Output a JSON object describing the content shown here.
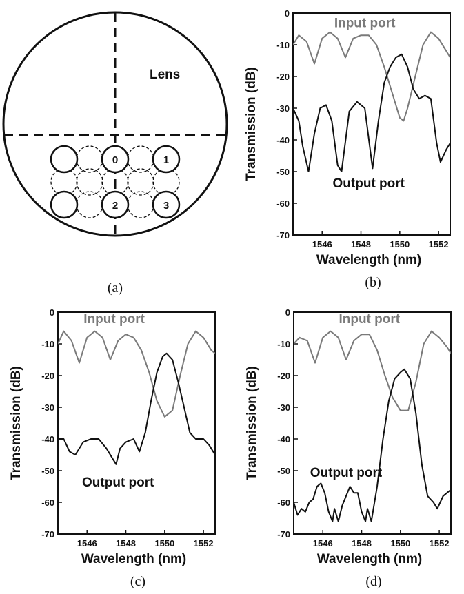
{
  "schematic": {
    "caption": "(a)",
    "lens_label": "Lens",
    "fiber_labels": [
      "0",
      "1",
      "2",
      "3"
    ]
  },
  "colors": {
    "input_line": "#7a7a7a",
    "output_line": "#111111",
    "axis": "#111111"
  },
  "chart_data": [
    {
      "type": "line",
      "caption": "(b)",
      "xlabel": "Wavelength (nm)",
      "ylabel": "Transmission (dB)",
      "xlim": [
        1544.5,
        1552.6
      ],
      "ylim": [
        -70,
        0
      ],
      "xticks": [
        1546,
        1548,
        1550,
        1552
      ],
      "yticks": [
        0,
        -10,
        -20,
        -30,
        -40,
        -50,
        -60,
        -70
      ],
      "annotations": [
        {
          "text": "Input port",
          "x": 1548.2,
          "y": -4.5,
          "series": "input"
        },
        {
          "text": "Output port",
          "x": 1548.4,
          "y": -55,
          "series": "output"
        }
      ],
      "series": [
        {
          "key": "input",
          "name": "Input port",
          "x": [
            1544.5,
            1544.8,
            1545.2,
            1545.6,
            1546.0,
            1546.4,
            1546.8,
            1547.2,
            1547.6,
            1548.0,
            1548.4,
            1548.8,
            1549.2,
            1549.6,
            1550.0,
            1550.2,
            1550.4,
            1550.8,
            1551.2,
            1551.6,
            1552.0,
            1552.4,
            1552.6
          ],
          "values": [
            -10,
            -7,
            -9,
            -16,
            -8,
            -6,
            -8,
            -14,
            -8,
            -7,
            -7,
            -10,
            -17,
            -25,
            -33,
            -34,
            -30,
            -20,
            -10,
            -6,
            -8,
            -12,
            -14
          ]
        },
        {
          "key": "output",
          "name": "Output port",
          "x": [
            1544.5,
            1544.8,
            1545.0,
            1545.3,
            1545.6,
            1545.9,
            1546.2,
            1546.5,
            1546.8,
            1547.0,
            1547.4,
            1547.8,
            1548.2,
            1548.6,
            1548.9,
            1549.2,
            1549.5,
            1549.8,
            1550.1,
            1550.4,
            1550.7,
            1551.0,
            1551.3,
            1551.6,
            1551.9,
            1552.1,
            1552.4,
            1552.6
          ],
          "values": [
            -30,
            -34,
            -42,
            -50,
            -38,
            -30,
            -29,
            -34,
            -48,
            -50,
            -31,
            -28,
            -30,
            -49,
            -34,
            -22,
            -17,
            -14,
            -13,
            -17,
            -24,
            -27,
            -26,
            -27,
            -41,
            -47,
            -43,
            -41
          ]
        }
      ]
    },
    {
      "type": "line",
      "caption": "(c)",
      "xlabel": "Wavelength (nm)",
      "ylabel": "Transmission (dB)",
      "xlim": [
        1544.5,
        1552.6
      ],
      "ylim": [
        -70,
        0
      ],
      "xticks": [
        1546,
        1548,
        1550,
        1552
      ],
      "yticks": [
        0,
        -10,
        -20,
        -30,
        -40,
        -50,
        -60,
        -70
      ],
      "annotations": [
        {
          "text": "Input port",
          "x": 1547.4,
          "y": -3.5,
          "series": "input"
        },
        {
          "text": "Output port",
          "x": 1547.6,
          "y": -55,
          "series": "output"
        }
      ],
      "series": [
        {
          "key": "input",
          "name": "Input port",
          "x": [
            1544.5,
            1544.8,
            1545.2,
            1545.6,
            1546.0,
            1546.4,
            1546.8,
            1547.2,
            1547.6,
            1548.0,
            1548.4,
            1548.8,
            1549.2,
            1549.6,
            1550.0,
            1550.4,
            1550.8,
            1551.2,
            1551.6,
            1552.0,
            1552.4,
            1552.6
          ],
          "values": [
            -10,
            -6,
            -9,
            -16,
            -8,
            -6,
            -8,
            -15,
            -9,
            -7,
            -8,
            -12,
            -19,
            -28,
            -33,
            -31,
            -20,
            -10,
            -6,
            -8,
            -12,
            -13
          ]
        },
        {
          "key": "output",
          "name": "Output port",
          "x": [
            1544.5,
            1544.8,
            1545.1,
            1545.4,
            1545.8,
            1546.2,
            1546.6,
            1547.0,
            1547.3,
            1547.5,
            1547.7,
            1548.0,
            1548.4,
            1548.7,
            1549.0,
            1549.3,
            1549.6,
            1549.9,
            1550.1,
            1550.4,
            1550.7,
            1551.0,
            1551.3,
            1551.6,
            1552.0,
            1552.3,
            1552.6
          ],
          "values": [
            -40,
            -40,
            -44,
            -45,
            -41,
            -40,
            -40,
            -43,
            -46,
            -48,
            -43,
            -41,
            -40,
            -44,
            -38,
            -28,
            -19,
            -14,
            -13,
            -15,
            -22,
            -30,
            -38,
            -40,
            -40,
            -42,
            -45
          ]
        }
      ]
    },
    {
      "type": "line",
      "caption": "(d)",
      "xlabel": "Wavelength (nm)",
      "ylabel": "Transmission (dB)",
      "xlim": [
        1544.5,
        1552.6
      ],
      "ylim": [
        -70,
        0
      ],
      "xticks": [
        1546,
        1548,
        1550,
        1552
      ],
      "yticks": [
        0,
        -10,
        -20,
        -30,
        -40,
        -50,
        -60,
        -70
      ],
      "annotations": [
        {
          "text": "Input port",
          "x": 1548.4,
          "y": -3.5,
          "series": "input"
        },
        {
          "text": "Output port",
          "x": 1547.2,
          "y": -52,
          "series": "output"
        }
      ],
      "series": [
        {
          "key": "input",
          "name": "Input port",
          "x": [
            1544.5,
            1544.8,
            1545.2,
            1545.6,
            1546.0,
            1546.4,
            1546.8,
            1547.2,
            1547.6,
            1548.0,
            1548.4,
            1548.8,
            1549.2,
            1549.6,
            1550.0,
            1550.4,
            1550.8,
            1551.2,
            1551.6,
            1552.0,
            1552.4,
            1552.6
          ],
          "values": [
            -10,
            -8,
            -9,
            -16,
            -8,
            -6,
            -8,
            -15,
            -9,
            -7,
            -7,
            -12,
            -20,
            -27,
            -31,
            -31,
            -22,
            -10,
            -6,
            -8,
            -11,
            -13
          ]
        },
        {
          "key": "output",
          "name": "Output port",
          "x": [
            1544.5,
            1544.7,
            1544.9,
            1545.1,
            1545.3,
            1545.5,
            1545.7,
            1545.9,
            1546.1,
            1546.3,
            1546.5,
            1546.6,
            1546.8,
            1547.0,
            1547.2,
            1547.4,
            1547.6,
            1547.8,
            1548.0,
            1548.2,
            1548.3,
            1548.5,
            1548.8,
            1549.1,
            1549.4,
            1549.7,
            1550.0,
            1550.2,
            1550.5,
            1550.8,
            1551.1,
            1551.4,
            1551.7,
            1551.9,
            1552.2,
            1552.4,
            1552.6
          ],
          "values": [
            -60,
            -64,
            -62,
            -63,
            -60,
            -59,
            -55,
            -54,
            -57,
            -63,
            -66,
            -62,
            -66,
            -61,
            -58,
            -55,
            -57,
            -57,
            -63,
            -66,
            -62,
            -66,
            -55,
            -40,
            -28,
            -21,
            -19,
            -18,
            -21,
            -32,
            -48,
            -58,
            -60,
            -62,
            -58,
            -57,
            -56
          ]
        }
      ]
    }
  ],
  "captions": {
    "b": "(b)",
    "c": "(c)",
    "d": "(d)"
  }
}
